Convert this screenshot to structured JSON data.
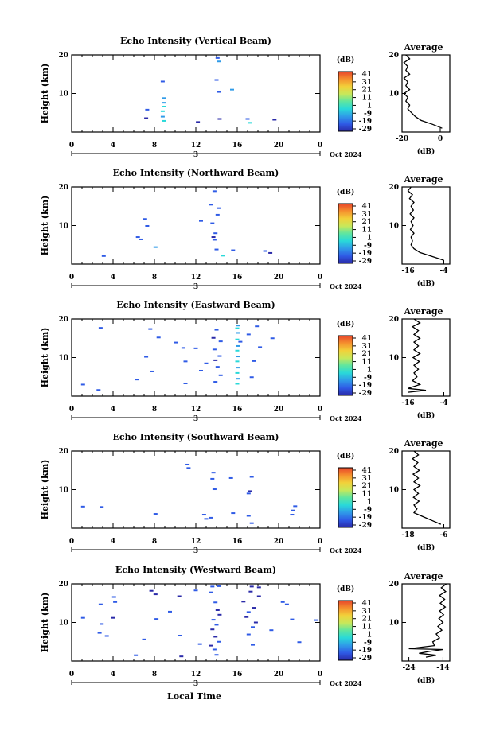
{
  "figure": {
    "ylabel": "Height (km)",
    "colorbar_title": "(dB)",
    "colorbar_ticks": [
      "41",
      "31",
      "21",
      "11",
      "1",
      "-9",
      "-19",
      "-29"
    ],
    "avg_title": "Average",
    "avg_xlabel": "(dB)",
    "x_ticks": [
      "0",
      "4",
      "8",
      "12",
      "16",
      "20",
      "0"
    ],
    "day_marker": "3",
    "date_label": "Oct 2024",
    "xlabel": "Local Time"
  },
  "chart_data": [
    {
      "type": "heatmap",
      "title": "Echo Intensity (Vertical Beam)",
      "xlim": [
        0,
        24
      ],
      "ylim": [
        0,
        20
      ],
      "y_ticks": [
        10,
        20
      ],
      "clim": [
        -29,
        41
      ],
      "echoes": [
        [
          14.1,
          19.2,
          -19
        ],
        [
          14.2,
          18.3,
          -9
        ],
        [
          14.0,
          13.5,
          -19
        ],
        [
          14.2,
          10.4,
          -19
        ],
        [
          8.8,
          13.1,
          -19
        ],
        [
          8.9,
          8.8,
          -9
        ],
        [
          8.9,
          7.6,
          -9
        ],
        [
          8.9,
          6.6,
          -1
        ],
        [
          8.8,
          5.4,
          1
        ],
        [
          8.8,
          4.0,
          -9
        ],
        [
          8.9,
          2.9,
          1
        ],
        [
          7.3,
          5.8,
          -19
        ],
        [
          7.2,
          3.6,
          -29
        ],
        [
          12.2,
          2.6,
          -29
        ],
        [
          15.5,
          11.0,
          -9
        ],
        [
          14.3,
          3.4,
          -29
        ],
        [
          17.2,
          2.4,
          1
        ],
        [
          17.0,
          3.4,
          -19
        ],
        [
          19.6,
          3.2,
          -29
        ]
      ],
      "average": {
        "xlim": [
          -20,
          5
        ],
        "xticks": [
          -20,
          0
        ],
        "profile": [
          [
            20,
            -18
          ],
          [
            19,
            -16
          ],
          [
            18,
            -19
          ],
          [
            17,
            -17
          ],
          [
            16,
            -18
          ],
          [
            15,
            -16
          ],
          [
            14,
            -19
          ],
          [
            13,
            -17
          ],
          [
            12,
            -18
          ],
          [
            11,
            -16
          ],
          [
            10,
            -19
          ],
          [
            9,
            -17
          ],
          [
            8,
            -18
          ],
          [
            7,
            -16
          ],
          [
            6,
            -17
          ],
          [
            5,
            -15
          ],
          [
            4,
            -13
          ],
          [
            3,
            -10
          ],
          [
            2,
            -4
          ],
          [
            1,
            1
          ]
        ]
      }
    },
    {
      "type": "heatmap",
      "title": "Echo Intensity (Northward Beam)",
      "xlim": [
        0,
        24
      ],
      "ylim": [
        0,
        20
      ],
      "y_ticks": [
        10,
        20
      ],
      "clim": [
        -29,
        41
      ],
      "echoes": [
        [
          13.8,
          18.9,
          -19
        ],
        [
          13.5,
          15.4,
          -19
        ],
        [
          14.2,
          14.5,
          -19
        ],
        [
          14.1,
          12.8,
          -19
        ],
        [
          12.5,
          11.2,
          -19
        ],
        [
          13.6,
          10.6,
          -19
        ],
        [
          13.7,
          7.0,
          -29
        ],
        [
          13.8,
          6.3,
          -19
        ],
        [
          14.0,
          3.8,
          -19
        ],
        [
          14.6,
          2.2,
          1
        ],
        [
          7.1,
          11.7,
          -19
        ],
        [
          7.3,
          9.9,
          -19
        ],
        [
          6.4,
          7.0,
          -19
        ],
        [
          6.7,
          6.4,
          -19
        ],
        [
          8.1,
          4.4,
          -9
        ],
        [
          3.1,
          2.1,
          -19
        ],
        [
          18.7,
          3.4,
          -19
        ],
        [
          19.2,
          2.9,
          -29
        ],
        [
          15.6,
          3.6,
          -19
        ],
        [
          13.9,
          8.0,
          -19
        ]
      ],
      "average": {
        "xlim": [
          -18,
          -2
        ],
        "xticks": [
          -16,
          -4
        ],
        "profile": [
          [
            20,
            -15
          ],
          [
            19,
            -16
          ],
          [
            18,
            -14.5
          ],
          [
            17,
            -15.5
          ],
          [
            16,
            -14
          ],
          [
            15,
            -15
          ],
          [
            14,
            -14.2
          ],
          [
            13,
            -15.3
          ],
          [
            12,
            -14
          ],
          [
            11,
            -15
          ],
          [
            10,
            -14.3
          ],
          [
            9,
            -15.2
          ],
          [
            8,
            -14
          ],
          [
            7,
            -15
          ],
          [
            6,
            -14.5
          ],
          [
            5,
            -15
          ],
          [
            4,
            -14
          ],
          [
            3,
            -12
          ],
          [
            2,
            -8
          ],
          [
            1,
            -4
          ]
        ]
      }
    },
    {
      "type": "heatmap",
      "title": "Echo Intensity (Eastward Beam)",
      "xlim": [
        0,
        24
      ],
      "ylim": [
        0,
        20
      ],
      "y_ticks": [
        10,
        20
      ],
      "clim": [
        -29,
        41
      ],
      "echoes": [
        [
          16.1,
          18.3,
          -9
        ],
        [
          16.0,
          17.6,
          -1
        ],
        [
          16.1,
          16.4,
          -9
        ],
        [
          16.0,
          14.7,
          -1
        ],
        [
          16.1,
          13.0,
          -9
        ],
        [
          16.0,
          11.8,
          1
        ],
        [
          16.1,
          10.3,
          -9
        ],
        [
          16.0,
          9.0,
          1
        ],
        [
          16.1,
          7.4,
          -9
        ],
        [
          16.0,
          6.0,
          1
        ],
        [
          16.1,
          4.5,
          -9
        ],
        [
          16.0,
          3.2,
          1
        ],
        [
          14.0,
          17.2,
          -19
        ],
        [
          13.7,
          15.1,
          -29
        ],
        [
          14.4,
          14.2,
          -19
        ],
        [
          13.8,
          12.1,
          -19
        ],
        [
          14.3,
          10.4,
          -19
        ],
        [
          13.9,
          9.3,
          -29
        ],
        [
          14.1,
          7.6,
          -19
        ],
        [
          14.4,
          5.4,
          -19
        ],
        [
          13.9,
          3.7,
          -19
        ],
        [
          17.9,
          18.1,
          -19
        ],
        [
          18.2,
          12.7,
          -19
        ],
        [
          17.6,
          9.1,
          -19
        ],
        [
          17.4,
          4.9,
          -19
        ],
        [
          2.8,
          17.7,
          -19
        ],
        [
          7.6,
          17.4,
          -19
        ],
        [
          8.4,
          15.2,
          -19
        ],
        [
          10.1,
          13.9,
          -19
        ],
        [
          10.8,
          12.5,
          -19
        ],
        [
          12.0,
          12.4,
          -19
        ],
        [
          7.2,
          10.2,
          -19
        ],
        [
          11.0,
          9.0,
          -19
        ],
        [
          12.5,
          6.6,
          -19
        ],
        [
          11.0,
          3.3,
          -19
        ],
        [
          6.3,
          4.3,
          -19
        ],
        [
          2.6,
          1.6,
          -19
        ],
        [
          1.1,
          3.0,
          -19
        ],
        [
          7.8,
          6.4,
          -19
        ],
        [
          16.3,
          14.1,
          -19
        ],
        [
          17.1,
          16.0,
          -19
        ],
        [
          19.4,
          15.0,
          -19
        ],
        [
          13.0,
          8.5,
          -19
        ]
      ],
      "average": {
        "xlim": [
          -18,
          -2
        ],
        "xticks": [
          -16,
          -4
        ],
        "profile": [
          [
            20,
            -14
          ],
          [
            19,
            -12
          ],
          [
            18,
            -14.5
          ],
          [
            17,
            -12.5
          ],
          [
            16,
            -14
          ],
          [
            15,
            -12
          ],
          [
            14,
            -14
          ],
          [
            13,
            -12.5
          ],
          [
            12,
            -14
          ],
          [
            11,
            -12
          ],
          [
            10,
            -14.3
          ],
          [
            9,
            -12.2
          ],
          [
            8,
            -14
          ],
          [
            7,
            -12.5
          ],
          [
            6,
            -14
          ],
          [
            5,
            -13
          ],
          [
            4,
            -14.5
          ],
          [
            3,
            -12
          ],
          [
            2,
            -16
          ],
          [
            1.5,
            -10
          ],
          [
            1,
            -16
          ]
        ]
      }
    },
    {
      "type": "heatmap",
      "title": "Echo Intensity (Southward Beam)",
      "xlim": [
        0,
        24
      ],
      "ylim": [
        0,
        20
      ],
      "y_ticks": [
        10,
        20
      ],
      "clim": [
        -29,
        41
      ],
      "echoes": [
        [
          11.2,
          16.5,
          -19
        ],
        [
          11.3,
          15.6,
          -19
        ],
        [
          13.7,
          14.4,
          -19
        ],
        [
          13.6,
          12.8,
          -19
        ],
        [
          13.8,
          10.1,
          -19
        ],
        [
          15.4,
          13.0,
          -19
        ],
        [
          17.4,
          13.3,
          -19
        ],
        [
          17.2,
          9.6,
          -29
        ],
        [
          17.1,
          9.0,
          -19
        ],
        [
          1.1,
          5.6,
          -19
        ],
        [
          2.9,
          5.5,
          -19
        ],
        [
          8.1,
          3.7,
          -19
        ],
        [
          12.8,
          3.5,
          -19
        ],
        [
          15.6,
          3.9,
          -19
        ],
        [
          13.5,
          2.7,
          -19
        ],
        [
          17.1,
          3.2,
          -19
        ],
        [
          21.6,
          5.7,
          -19
        ],
        [
          21.4,
          4.6,
          -19
        ],
        [
          21.3,
          3.5,
          -19
        ],
        [
          17.4,
          1.3,
          -19
        ],
        [
          13.0,
          2.4,
          -19
        ]
      ],
      "average": {
        "xlim": [
          -20,
          -4
        ],
        "xticks": [
          -18,
          -6
        ],
        "profile": [
          [
            20,
            -16
          ],
          [
            19,
            -14.5
          ],
          [
            18,
            -16.5
          ],
          [
            17,
            -14.7
          ],
          [
            16,
            -16
          ],
          [
            15,
            -14.2
          ],
          [
            14,
            -16.3
          ],
          [
            13,
            -14.5
          ],
          [
            12,
            -16
          ],
          [
            11,
            -14
          ],
          [
            10,
            -16
          ],
          [
            9,
            -14.5
          ],
          [
            8,
            -16.2
          ],
          [
            7,
            -14.3
          ],
          [
            6,
            -16
          ],
          [
            5,
            -15
          ],
          [
            4,
            -16
          ],
          [
            3,
            -13
          ],
          [
            2,
            -10
          ],
          [
            1,
            -7
          ]
        ]
      }
    },
    {
      "type": "heatmap",
      "title": "Echo Intensity (Westward Beam)",
      "xlim": [
        0,
        24
      ],
      "ylim": [
        0,
        20
      ],
      "y_ticks": [
        10,
        20
      ],
      "clim": [
        -29,
        41
      ],
      "echoes": [
        [
          13.6,
          19.3,
          -19
        ],
        [
          14.2,
          19.4,
          -19
        ],
        [
          13.5,
          17.8,
          -19
        ],
        [
          13.9,
          15.2,
          -19
        ],
        [
          14.1,
          13.2,
          -29
        ],
        [
          14.3,
          12.0,
          -29
        ],
        [
          13.7,
          10.7,
          -19
        ],
        [
          14.0,
          9.4,
          -19
        ],
        [
          13.6,
          8.2,
          -29
        ],
        [
          13.9,
          6.3,
          -29
        ],
        [
          14.2,
          5.0,
          -19
        ],
        [
          13.5,
          4.0,
          -29
        ],
        [
          13.8,
          3.0,
          -19
        ],
        [
          14.0,
          1.6,
          -19
        ],
        [
          17.4,
          19.3,
          -29
        ],
        [
          18.1,
          19.1,
          -29
        ],
        [
          17.3,
          18.0,
          -29
        ],
        [
          18.1,
          16.8,
          -29
        ],
        [
          16.6,
          15.4,
          -29
        ],
        [
          17.6,
          13.8,
          -29
        ],
        [
          17.1,
          12.7,
          -19
        ],
        [
          16.9,
          11.4,
          -29
        ],
        [
          17.8,
          10.0,
          -29
        ],
        [
          17.5,
          8.8,
          -19
        ],
        [
          17.1,
          6.9,
          -19
        ],
        [
          17.5,
          4.2,
          -19
        ],
        [
          7.7,
          18.2,
          -29
        ],
        [
          8.1,
          17.3,
          -29
        ],
        [
          4.1,
          16.6,
          -19
        ],
        [
          4.2,
          15.3,
          -19
        ],
        [
          4.0,
          11.2,
          -29
        ],
        [
          10.4,
          16.8,
          -29
        ],
        [
          9.5,
          12.8,
          -19
        ],
        [
          8.2,
          10.9,
          -19
        ],
        [
          10.5,
          6.6,
          -19
        ],
        [
          1.1,
          11.2,
          -19
        ],
        [
          2.8,
          14.7,
          -19
        ],
        [
          2.9,
          9.6,
          -19
        ],
        [
          2.7,
          7.3,
          -19
        ],
        [
          3.4,
          6.5,
          -19
        ],
        [
          7.0,
          5.6,
          -19
        ],
        [
          12.4,
          4.4,
          -19
        ],
        [
          10.6,
          1.2,
          -29
        ],
        [
          6.2,
          1.5,
          -19
        ],
        [
          20.4,
          15.3,
          -19
        ],
        [
          20.8,
          14.7,
          -19
        ],
        [
          21.3,
          10.8,
          -19
        ],
        [
          19.3,
          8.0,
          -19
        ],
        [
          23.6,
          10.6,
          -19
        ],
        [
          22.0,
          4.9,
          -19
        ],
        [
          12.0,
          18.3,
          -19
        ]
      ],
      "average": {
        "xlim": [
          -26,
          -12
        ],
        "xticks": [
          -24,
          -14
        ],
        "profile": [
          [
            20,
            -13
          ],
          [
            19,
            -14.5
          ],
          [
            18,
            -13.2
          ],
          [
            17,
            -15
          ],
          [
            16,
            -13.5
          ],
          [
            15,
            -14.8
          ],
          [
            14,
            -13.3
          ],
          [
            13,
            -15
          ],
          [
            12,
            -13.8
          ],
          [
            11,
            -15.2
          ],
          [
            10,
            -14
          ],
          [
            9,
            -15.5
          ],
          [
            8,
            -14.3
          ],
          [
            7,
            -16
          ],
          [
            6,
            -15
          ],
          [
            5,
            -17
          ],
          [
            4,
            -16.5
          ],
          [
            3.2,
            -24
          ],
          [
            3,
            -14
          ],
          [
            2.5,
            -18
          ],
          [
            2,
            -21
          ],
          [
            1.5,
            -16
          ],
          [
            1,
            -19
          ]
        ]
      }
    }
  ]
}
